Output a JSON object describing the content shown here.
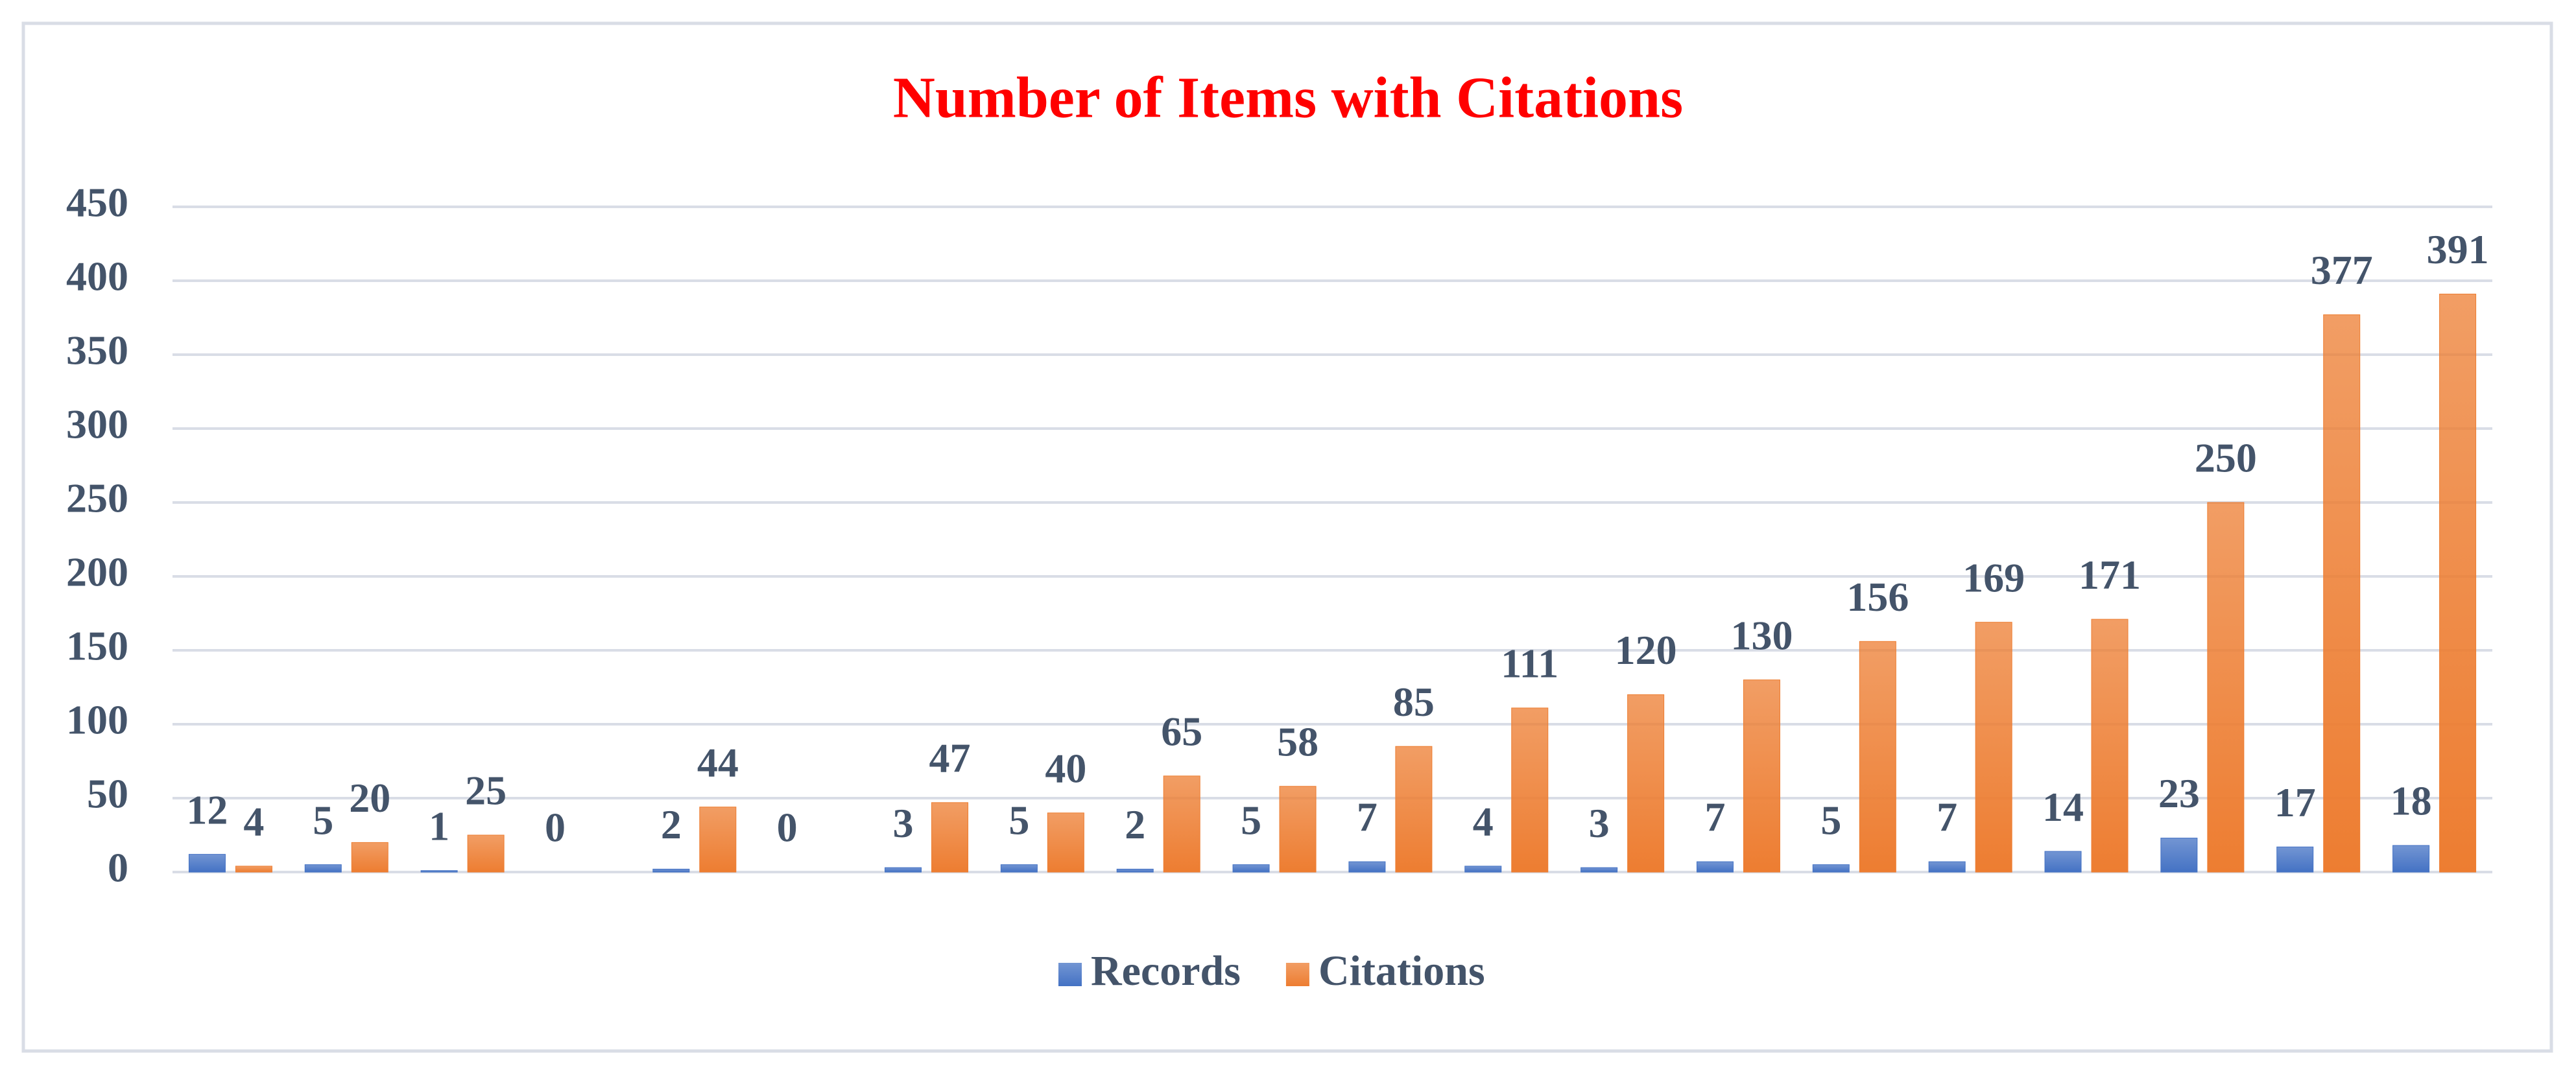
{
  "chart_data": {
    "type": "bar",
    "title": "Number of Items with Citations",
    "categories": [
      null,
      null,
      null,
      null,
      null,
      null,
      null,
      null,
      null,
      null,
      null,
      null,
      null,
      null,
      null,
      null,
      null,
      null,
      null,
      null
    ],
    "series": [
      {
        "name": "Records",
        "color": "#4472c4",
        "values": [
          12,
          5,
          1,
          0,
          2,
          0,
          3,
          5,
          2,
          5,
          7,
          4,
          3,
          7,
          5,
          7,
          14,
          23,
          17,
          18
        ]
      },
      {
        "name": "Citations",
        "color": "#ed7d31",
        "values": [
          4,
          20,
          25,
          null,
          44,
          null,
          47,
          40,
          65,
          58,
          85,
          111,
          120,
          130,
          156,
          169,
          171,
          250,
          377,
          391
        ]
      }
    ],
    "ylim": [
      0,
      450
    ],
    "yticks": [
      0,
      50,
      100,
      150,
      200,
      250,
      300,
      350,
      400,
      450
    ],
    "grid": true,
    "legend": "bottom"
  }
}
